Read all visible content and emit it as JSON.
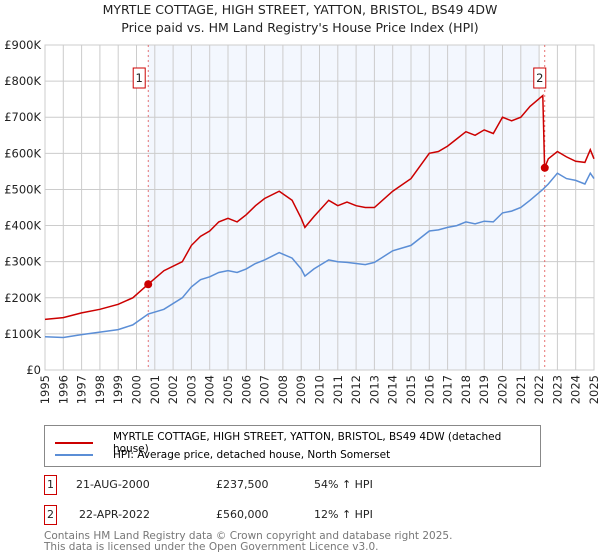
{
  "chart_data": {
    "type": "line",
    "title": "MYRTLE COTTAGE, HIGH STREET, YATTON, BRISTOL, BS49 4DW",
    "subtitle": "Price paid vs. HM Land Registry's House Price Index (HPI)",
    "xlim": [
      1995,
      2025
    ],
    "ylim": [
      0,
      900000
    ],
    "x_ticks": [
      "1995",
      "1996",
      "1997",
      "1998",
      "1999",
      "2000",
      "2001",
      "2002",
      "2003",
      "2004",
      "2005",
      "2006",
      "2007",
      "2008",
      "2009",
      "2010",
      "2011",
      "2012",
      "2013",
      "2014",
      "2015",
      "2016",
      "2017",
      "2018",
      "2019",
      "2020",
      "2021",
      "2022",
      "2023",
      "2024",
      "2025"
    ],
    "y_ticks": [
      {
        "v": 0,
        "label": "£0"
      },
      {
        "v": 100000,
        "label": "£100K"
      },
      {
        "v": 200000,
        "label": "£200K"
      },
      {
        "v": 300000,
        "label": "£300K"
      },
      {
        "v": 400000,
        "label": "£400K"
      },
      {
        "v": 500000,
        "label": "£500K"
      },
      {
        "v": 600000,
        "label": "£600K"
      },
      {
        "v": 700000,
        "label": "£700K"
      },
      {
        "v": 800000,
        "label": "£800K"
      },
      {
        "v": 900000,
        "label": "£900K"
      }
    ],
    "grid": true,
    "series": [
      {
        "name": "MYRTLE COTTAGE, HIGH STREET, YATTON, BRISTOL, BS49 4DW (detached house)",
        "color": "#cc0000",
        "x": [
          1995,
          1996,
          1997,
          1998,
          1999,
          1999.8,
          2000.64,
          2001.5,
          2002.5,
          2003,
          2003.5,
          2004,
          2004.5,
          2005,
          2005.5,
          2006,
          2006.5,
          2007,
          2007.8,
          2008.5,
          2009,
          2009.2,
          2009.7,
          2010.5,
          2011,
          2011.5,
          2012,
          2012.5,
          2013,
          2014,
          2015,
          2016,
          2016.5,
          2017,
          2017.5,
          2018,
          2018.5,
          2019,
          2019.5,
          2020,
          2020.5,
          2021,
          2021.5,
          2022.2,
          2022.3,
          2022.5,
          2023,
          2023.5,
          2024,
          2024.5,
          2024.8,
          2025
        ],
        "y": [
          140000,
          145000,
          158000,
          168000,
          182000,
          200000,
          237500,
          275000,
          300000,
          345000,
          370000,
          385000,
          410000,
          420000,
          410000,
          430000,
          455000,
          475000,
          495000,
          470000,
          420000,
          395000,
          425000,
          470000,
          455000,
          465000,
          455000,
          450000,
          450000,
          495000,
          530000,
          600000,
          605000,
          620000,
          640000,
          660000,
          650000,
          665000,
          655000,
          700000,
          690000,
          700000,
          730000,
          760000,
          560000,
          585000,
          605000,
          590000,
          578000,
          575000,
          610000,
          585000
        ]
      },
      {
        "name": "HPI: Average price, detached house, North Somerset",
        "color": "#5b8ed6",
        "x": [
          1995,
          1996,
          1997,
          1998,
          1999,
          1999.8,
          2000.64,
          2001.5,
          2002.5,
          2003,
          2003.5,
          2004,
          2004.5,
          2005,
          2005.5,
          2006,
          2006.5,
          2007,
          2007.8,
          2008.5,
          2009,
          2009.2,
          2009.7,
          2010.5,
          2011,
          2011.5,
          2012,
          2012.5,
          2013,
          2014,
          2015,
          2016,
          2016.5,
          2017,
          2017.5,
          2018,
          2018.5,
          2019,
          2019.5,
          2020,
          2020.5,
          2021,
          2021.5,
          2022.2,
          2022.3,
          2022.5,
          2023,
          2023.5,
          2024,
          2024.5,
          2024.8,
          2025
        ],
        "y": [
          92000,
          90000,
          98000,
          105000,
          112000,
          125000,
          155000,
          168000,
          200000,
          230000,
          250000,
          258000,
          270000,
          275000,
          270000,
          280000,
          295000,
          305000,
          325000,
          310000,
          280000,
          260000,
          280000,
          305000,
          300000,
          298000,
          295000,
          292000,
          298000,
          330000,
          345000,
          385000,
          388000,
          395000,
          400000,
          410000,
          405000,
          412000,
          410000,
          435000,
          440000,
          450000,
          470000,
          500000,
          505000,
          515000,
          545000,
          530000,
          525000,
          515000,
          545000,
          530000
        ]
      }
    ],
    "markers": [
      {
        "label": "1",
        "x": 2000.64,
        "y": 237500
      },
      {
        "label": "2",
        "x": 2022.31,
        "y": 560000
      }
    ],
    "shade_range": [
      2000.64,
      2022.0
    ],
    "legend": "below"
  },
  "sales": [
    {
      "n": "1",
      "date": "21-AUG-2000",
      "price": "£237,500",
      "hpi": "54% ↑ HPI"
    },
    {
      "n": "2",
      "date": "22-APR-2022",
      "price": "£560,000",
      "hpi": "12% ↑ HPI"
    }
  ],
  "footer": {
    "line1": "Contains HM Land Registry data © Crown copyright and database right 2025.",
    "line2": "This data is licensed under the Open Government Licence v3.0."
  }
}
